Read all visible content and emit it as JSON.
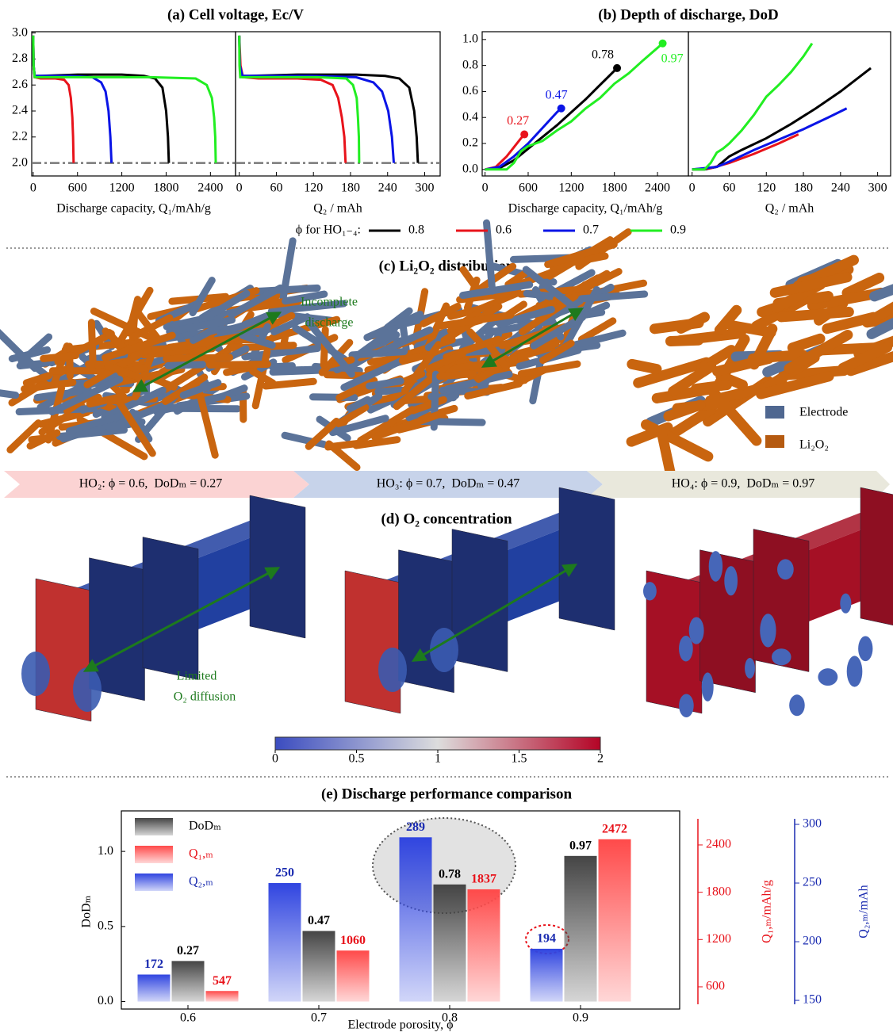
{
  "chart_data": [
    {
      "type": "line",
      "title": "(a) Cell voltage, Ec/V",
      "xlabel": "Discharge capacity, Q₁/mAh/g",
      "xlim": [
        -20,
        2740
      ],
      "ylim": [
        1.9,
        3.01
      ],
      "xticks": [
        0,
        600,
        1200,
        1800,
        2400
      ],
      "yticks": [
        {
          "value": 2.0,
          "label": "2.0"
        },
        2.2,
        2.4,
        2.6,
        2.8,
        {
          "value": 3,
          "label": "3.0"
        }
      ],
      "refline": 2.0,
      "legend_title": "ϕ for HO₁₋₄:",
      "series": [
        {
          "name": "0.8",
          "color": "#000000",
          "x": [
            0,
            5,
            20,
            100,
            600,
            1200,
            1500,
            1650,
            1750,
            1800,
            1825,
            1837
          ],
          "values": [
            2.98,
            2.75,
            2.67,
            2.67,
            2.68,
            2.68,
            2.67,
            2.65,
            2.58,
            2.4,
            2.2,
            2.0
          ]
        },
        {
          "name": "0.6",
          "color": "#e8131b",
          "x": [
            0,
            5,
            20,
            100,
            300,
            420,
            480,
            510,
            530,
            540,
            547
          ],
          "values": [
            2.98,
            2.75,
            2.66,
            2.65,
            2.65,
            2.64,
            2.6,
            2.5,
            2.35,
            2.2,
            2.0
          ]
        },
        {
          "name": "0.7",
          "color": "#0a14e6",
          "x": [
            0,
            5,
            20,
            100,
            500,
            800,
            920,
            980,
            1020,
            1045,
            1060
          ],
          "values": [
            2.98,
            2.75,
            2.67,
            2.67,
            2.67,
            2.66,
            2.62,
            2.55,
            2.4,
            2.2,
            2.0
          ]
        },
        {
          "name": "0.9",
          "color": "#22ee22",
          "x": [
            0,
            5,
            20,
            100,
            800,
            1600,
            2200,
            2350,
            2420,
            2450,
            2465,
            2472
          ],
          "values": [
            2.98,
            2.75,
            2.66,
            2.66,
            2.66,
            2.66,
            2.65,
            2.6,
            2.5,
            2.35,
            2.2,
            2.0
          ]
        }
      ]
    },
    {
      "type": "line",
      "xlabel": "Q₂ / mAh",
      "xlim": [
        -6,
        325
      ],
      "ylim": [
        1.9,
        3.01
      ],
      "xticks": [
        0,
        60,
        120,
        180,
        240,
        300
      ],
      "refline": 2.0,
      "series": [
        {
          "color": "#000000",
          "x": [
            0,
            1,
            3,
            16,
            94,
            189,
            236,
            259,
            275,
            283,
            287,
            289
          ],
          "values": [
            2.98,
            2.75,
            2.67,
            2.67,
            2.68,
            2.68,
            2.67,
            2.65,
            2.58,
            2.4,
            2.2,
            2.0
          ]
        },
        {
          "color": "#e8131b",
          "x": [
            0,
            2,
            6,
            31,
            94,
            132,
            151,
            160,
            166,
            170,
            172
          ],
          "values": [
            2.98,
            2.75,
            2.66,
            2.65,
            2.65,
            2.64,
            2.6,
            2.5,
            2.35,
            2.2,
            2.0
          ]
        },
        {
          "color": "#0a14e6",
          "x": [
            0,
            1,
            5,
            24,
            118,
            189,
            217,
            231,
            241,
            247,
            250
          ],
          "values": [
            2.98,
            2.75,
            2.67,
            2.67,
            2.67,
            2.66,
            2.62,
            2.55,
            2.4,
            2.2,
            2.0
          ]
        },
        {
          "color": "#22ee22",
          "x": [
            0,
            0.4,
            1.6,
            8,
            63,
            126,
            173,
            184,
            190,
            192,
            193.5,
            194
          ],
          "values": [
            2.98,
            2.75,
            2.66,
            2.66,
            2.66,
            2.66,
            2.65,
            2.6,
            2.5,
            2.35,
            2.2,
            2.0
          ]
        }
      ]
    },
    {
      "type": "line",
      "title": "(b) Depth of discharge, DoD",
      "xlabel": "Discharge capacity, Q₁/mAh/g",
      "xlim": [
        -40,
        2830
      ],
      "ylim": [
        -0.05,
        1.06
      ],
      "xticks": [
        0,
        600,
        1200,
        1800,
        2400
      ],
      "yticks": [
        {
          "value": 0,
          "label": "0.0"
        },
        0.2,
        0.4,
        0.6,
        0.8,
        {
          "value": 1,
          "label": "1.0"
        }
      ],
      "series": [
        {
          "color": "#000000",
          "x": [
            0,
            200,
            400,
            600,
            800,
            1000,
            1200,
            1400,
            1600,
            1837
          ],
          "values": [
            0,
            0.01,
            0.07,
            0.16,
            0.25,
            0.34,
            0.44,
            0.54,
            0.65,
            0.78
          ]
        },
        {
          "color": "#e8131b",
          "x": [
            0,
            150,
            300,
            400,
            500,
            547
          ],
          "values": [
            0,
            0.02,
            0.1,
            0.17,
            0.24,
            0.27
          ]
        },
        {
          "color": "#0a14e6",
          "x": [
            0,
            200,
            400,
            600,
            800,
            1000,
            1060
          ],
          "values": [
            0,
            0.02,
            0.1,
            0.2,
            0.32,
            0.44,
            0.47
          ]
        },
        {
          "color": "#22ee22",
          "x": [
            0,
            200,
            300,
            400,
            500,
            600,
            800,
            1000,
            1200,
            1400,
            1600,
            1800,
            2000,
            2200,
            2472
          ],
          "values": [
            0,
            0,
            0,
            0.05,
            0.14,
            0.18,
            0.22,
            0.3,
            0.37,
            0.47,
            0.55,
            0.66,
            0.74,
            0.84,
            0.97
          ]
        }
      ],
      "annotations": [
        {
          "text": "0.27",
          "x": 547,
          "y": 0.27,
          "color": "#e8131b"
        },
        {
          "text": "0.47",
          "x": 1060,
          "y": 0.47,
          "color": "#0a14e6"
        },
        {
          "text": "0.78",
          "x": 1837,
          "y": 0.78,
          "color": "#000000"
        },
        {
          "text": "0.97",
          "x": 2472,
          "y": 0.97,
          "color": "#22ee22"
        }
      ]
    },
    {
      "type": "line",
      "xlabel": "Q₂ / mAh",
      "xlim": [
        -6,
        321
      ],
      "ylim": [
        -0.05,
        1.06
      ],
      "xticks": [
        0,
        60,
        120,
        180,
        240,
        300
      ],
      "series": [
        {
          "color": "#000000",
          "x": [
            0,
            20,
            40,
            60,
            80,
            120,
            160,
            200,
            240,
            289
          ],
          "values": [
            0,
            0,
            0.02,
            0.1,
            0.15,
            0.24,
            0.35,
            0.47,
            0.6,
            0.78
          ]
        },
        {
          "color": "#e8131b",
          "x": [
            0,
            30,
            60,
            100,
            140,
            172
          ],
          "values": [
            0,
            0.01,
            0.05,
            0.12,
            0.2,
            0.27
          ]
        },
        {
          "color": "#0a14e6",
          "x": [
            0,
            40,
            60,
            100,
            140,
            180,
            220,
            250
          ],
          "values": [
            0,
            0.02,
            0.06,
            0.15,
            0.23,
            0.31,
            0.4,
            0.47
          ]
        },
        {
          "color": "#22ee22",
          "x": [
            0,
            20,
            30,
            40,
            50,
            60,
            80,
            100,
            120,
            140,
            160,
            180,
            194
          ],
          "values": [
            0,
            0,
            0.05,
            0.13,
            0.16,
            0.2,
            0.3,
            0.42,
            0.56,
            0.65,
            0.75,
            0.87,
            0.97
          ]
        }
      ]
    },
    {
      "type": "colorbar",
      "clim": [
        0,
        2
      ],
      "cticks": [
        0,
        0.5,
        1,
        1.5,
        2
      ],
      "colors": [
        "#3b4cc0",
        "#dddddd",
        "#b40426"
      ]
    },
    {
      "type": "bar",
      "title": "(e) Discharge performance comparison",
      "xlabel": "Electrode porosity, ϕ",
      "ylabel": "DoDₘ",
      "y2label": "Q₁,ₘ/mAh/g",
      "y3label": "Q₂,ₘ/mAh",
      "categories": [
        "0.6",
        "0.7",
        "0.8",
        "0.9"
      ],
      "ylim": [
        -0.05,
        1.27
      ],
      "yticks": [
        {
          "value": 0,
          "label": "0.0"
        },
        0.5,
        {
          "value": 1,
          "label": "1.0"
        }
      ],
      "y2lim": [
        318,
        2832
      ],
      "y2ticks": [
        600,
        1200,
        1800,
        2400
      ],
      "y2color": "#e8131b",
      "y3lim": [
        142.6,
        311.5
      ],
      "y3ticks": [
        150,
        200,
        250,
        300
      ],
      "y3color": "#1a2bb0",
      "series": [
        {
          "name": "DoDₘ",
          "color": "#454545",
          "label_color": "#000000",
          "values": [
            0.27,
            0.47,
            0.78,
            0.97
          ]
        },
        {
          "name": "Q₁,ₘ",
          "color": "#ff4a4a",
          "label_color": "#e8131b",
          "values": [
            547,
            1060,
            1837,
            2472
          ],
          "axis": "y2"
        },
        {
          "name": "Q₂,ₘ",
          "color": "#3045e0",
          "label_color": "#1a2bb0",
          "values": [
            172,
            250,
            289,
            194
          ],
          "axis": "y3"
        }
      ]
    }
  ],
  "panel_c": {
    "title": "(c) Li₂O₂ distribution",
    "annotation": [
      "Incomplete",
      "discharge"
    ],
    "legend": [
      "Electrode",
      "Li₂O₂"
    ],
    "banners": [
      "HO₂: ϕ = 0.6,  DoDₘ = 0.27",
      "HO₃: ϕ = 0.7,  DoDₘ = 0.47",
      "HO₄: ϕ = 0.9,  DoDₘ = 0.97"
    ]
  },
  "panel_d": {
    "title": "(d) O₂ concentration",
    "annotation": [
      "Limited",
      "O₂ diffusion"
    ]
  }
}
